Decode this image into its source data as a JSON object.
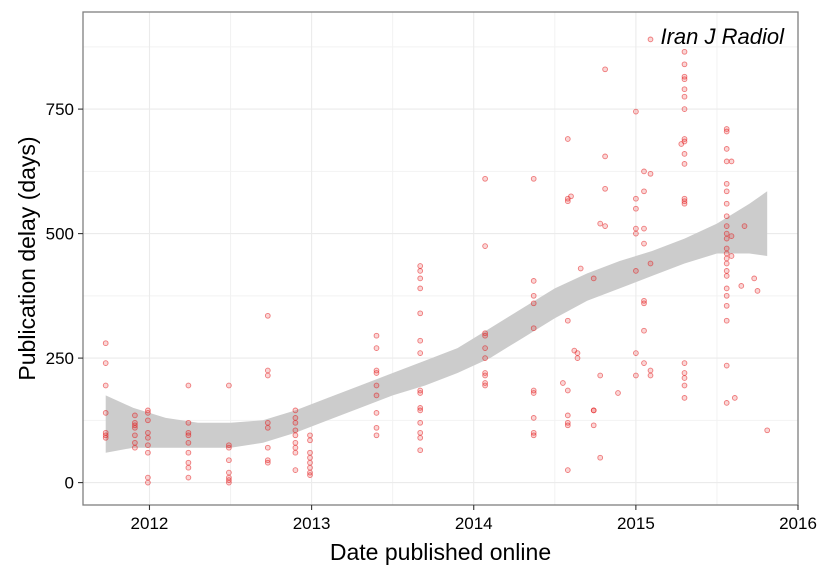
{
  "chart_data": {
    "type": "scatter",
    "annotation": "Iran J Radiol",
    "xlabel": "Date published online",
    "ylabel": "Publication delay (days)",
    "xlim": [
      2011.59,
      2016.0
    ],
    "ylim": [
      -45,
      945
    ],
    "xticks": [
      2012,
      2013,
      2014,
      2015,
      2016
    ],
    "yticks": [
      0,
      250,
      500,
      750
    ],
    "grid": true,
    "point_color": "#e41a1c",
    "smooth_band_color": "#cccccc",
    "points": [
      {
        "x": 2011.73,
        "y": 280
      },
      {
        "x": 2011.73,
        "y": 240
      },
      {
        "x": 2011.73,
        "y": 195
      },
      {
        "x": 2011.73,
        "y": 140
      },
      {
        "x": 2011.73,
        "y": 100
      },
      {
        "x": 2011.73,
        "y": 95
      },
      {
        "x": 2011.73,
        "y": 90
      },
      {
        "x": 2011.91,
        "y": 135
      },
      {
        "x": 2011.91,
        "y": 120
      },
      {
        "x": 2011.91,
        "y": 115
      },
      {
        "x": 2011.91,
        "y": 110
      },
      {
        "x": 2011.91,
        "y": 95
      },
      {
        "x": 2011.91,
        "y": 80
      },
      {
        "x": 2011.91,
        "y": 70
      },
      {
        "x": 2011.99,
        "y": 145
      },
      {
        "x": 2011.99,
        "y": 140
      },
      {
        "x": 2011.99,
        "y": 125
      },
      {
        "x": 2011.99,
        "y": 100
      },
      {
        "x": 2011.99,
        "y": 90
      },
      {
        "x": 2011.99,
        "y": 75
      },
      {
        "x": 2011.99,
        "y": 60
      },
      {
        "x": 2011.99,
        "y": 10
      },
      {
        "x": 2011.99,
        "y": 0
      },
      {
        "x": 2012.24,
        "y": 195
      },
      {
        "x": 2012.24,
        "y": 120
      },
      {
        "x": 2012.24,
        "y": 100
      },
      {
        "x": 2012.24,
        "y": 95
      },
      {
        "x": 2012.24,
        "y": 80
      },
      {
        "x": 2012.24,
        "y": 60
      },
      {
        "x": 2012.24,
        "y": 40
      },
      {
        "x": 2012.24,
        "y": 30
      },
      {
        "x": 2012.24,
        "y": 10
      },
      {
        "x": 2012.49,
        "y": 195
      },
      {
        "x": 2012.49,
        "y": 75
      },
      {
        "x": 2012.49,
        "y": 70
      },
      {
        "x": 2012.49,
        "y": 45
      },
      {
        "x": 2012.49,
        "y": 20
      },
      {
        "x": 2012.49,
        "y": 10
      },
      {
        "x": 2012.49,
        "y": 5
      },
      {
        "x": 2012.49,
        "y": 0
      },
      {
        "x": 2012.73,
        "y": 335
      },
      {
        "x": 2012.73,
        "y": 225
      },
      {
        "x": 2012.73,
        "y": 215
      },
      {
        "x": 2012.73,
        "y": 120
      },
      {
        "x": 2012.73,
        "y": 110
      },
      {
        "x": 2012.73,
        "y": 70
      },
      {
        "x": 2012.73,
        "y": 45
      },
      {
        "x": 2012.73,
        "y": 40
      },
      {
        "x": 2012.9,
        "y": 145
      },
      {
        "x": 2012.9,
        "y": 130
      },
      {
        "x": 2012.9,
        "y": 120
      },
      {
        "x": 2012.9,
        "y": 105
      },
      {
        "x": 2012.9,
        "y": 95
      },
      {
        "x": 2012.9,
        "y": 80
      },
      {
        "x": 2012.9,
        "y": 70
      },
      {
        "x": 2012.9,
        "y": 60
      },
      {
        "x": 2012.9,
        "y": 25
      },
      {
        "x": 2012.99,
        "y": 95
      },
      {
        "x": 2012.99,
        "y": 85
      },
      {
        "x": 2012.99,
        "y": 60
      },
      {
        "x": 2012.99,
        "y": 50
      },
      {
        "x": 2012.99,
        "y": 40
      },
      {
        "x": 2012.99,
        "y": 30
      },
      {
        "x": 2012.99,
        "y": 20
      },
      {
        "x": 2012.99,
        "y": 15
      },
      {
        "x": 2013.4,
        "y": 295
      },
      {
        "x": 2013.4,
        "y": 270
      },
      {
        "x": 2013.4,
        "y": 225
      },
      {
        "x": 2013.4,
        "y": 220
      },
      {
        "x": 2013.4,
        "y": 195
      },
      {
        "x": 2013.4,
        "y": 175
      },
      {
        "x": 2013.4,
        "y": 140
      },
      {
        "x": 2013.4,
        "y": 110
      },
      {
        "x": 2013.4,
        "y": 95
      },
      {
        "x": 2013.67,
        "y": 435
      },
      {
        "x": 2013.67,
        "y": 425
      },
      {
        "x": 2013.67,
        "y": 410
      },
      {
        "x": 2013.67,
        "y": 390
      },
      {
        "x": 2013.67,
        "y": 340
      },
      {
        "x": 2013.67,
        "y": 285
      },
      {
        "x": 2013.67,
        "y": 260
      },
      {
        "x": 2013.67,
        "y": 185
      },
      {
        "x": 2013.67,
        "y": 180
      },
      {
        "x": 2013.67,
        "y": 150
      },
      {
        "x": 2013.67,
        "y": 145
      },
      {
        "x": 2013.67,
        "y": 120
      },
      {
        "x": 2013.67,
        "y": 100
      },
      {
        "x": 2013.67,
        "y": 90
      },
      {
        "x": 2013.67,
        "y": 65
      },
      {
        "x": 2014.07,
        "y": 610
      },
      {
        "x": 2014.07,
        "y": 475
      },
      {
        "x": 2014.07,
        "y": 300
      },
      {
        "x": 2014.07,
        "y": 295
      },
      {
        "x": 2014.07,
        "y": 270
      },
      {
        "x": 2014.07,
        "y": 250
      },
      {
        "x": 2014.07,
        "y": 220
      },
      {
        "x": 2014.07,
        "y": 215
      },
      {
        "x": 2014.07,
        "y": 200
      },
      {
        "x": 2014.07,
        "y": 195
      },
      {
        "x": 2014.37,
        "y": 610
      },
      {
        "x": 2014.37,
        "y": 405
      },
      {
        "x": 2014.37,
        "y": 375
      },
      {
        "x": 2014.37,
        "y": 360
      },
      {
        "x": 2014.37,
        "y": 310
      },
      {
        "x": 2014.37,
        "y": 185
      },
      {
        "x": 2014.37,
        "y": 180
      },
      {
        "x": 2014.37,
        "y": 130
      },
      {
        "x": 2014.37,
        "y": 100
      },
      {
        "x": 2014.37,
        "y": 95
      },
      {
        "x": 2014.55,
        "y": 200
      },
      {
        "x": 2014.58,
        "y": 690
      },
      {
        "x": 2014.58,
        "y": 570
      },
      {
        "x": 2014.58,
        "y": 565
      },
      {
        "x": 2014.58,
        "y": 325
      },
      {
        "x": 2014.58,
        "y": 185
      },
      {
        "x": 2014.58,
        "y": 135
      },
      {
        "x": 2014.58,
        "y": 120
      },
      {
        "x": 2014.58,
        "y": 115
      },
      {
        "x": 2014.58,
        "y": 25
      },
      {
        "x": 2014.6,
        "y": 575
      },
      {
        "x": 2014.62,
        "y": 265
      },
      {
        "x": 2014.64,
        "y": 260
      },
      {
        "x": 2014.64,
        "y": 250
      },
      {
        "x": 2014.66,
        "y": 430
      },
      {
        "x": 2014.74,
        "y": 410
      },
      {
        "x": 2014.74,
        "y": 145
      },
      {
        "x": 2014.74,
        "y": 145
      },
      {
        "x": 2014.74,
        "y": 115
      },
      {
        "x": 2014.78,
        "y": 520
      },
      {
        "x": 2014.78,
        "y": 215
      },
      {
        "x": 2014.78,
        "y": 50
      },
      {
        "x": 2014.81,
        "y": 830
      },
      {
        "x": 2014.81,
        "y": 655
      },
      {
        "x": 2014.81,
        "y": 590
      },
      {
        "x": 2014.81,
        "y": 515
      },
      {
        "x": 2014.89,
        "y": 180
      },
      {
        "x": 2015.0,
        "y": 745
      },
      {
        "x": 2015.0,
        "y": 570
      },
      {
        "x": 2015.0,
        "y": 550
      },
      {
        "x": 2015.0,
        "y": 510
      },
      {
        "x": 2015.0,
        "y": 500
      },
      {
        "x": 2015.0,
        "y": 425
      },
      {
        "x": 2015.0,
        "y": 260
      },
      {
        "x": 2015.0,
        "y": 215
      },
      {
        "x": 2015.05,
        "y": 625
      },
      {
        "x": 2015.05,
        "y": 585
      },
      {
        "x": 2015.05,
        "y": 510
      },
      {
        "x": 2015.05,
        "y": 480
      },
      {
        "x": 2015.05,
        "y": 365
      },
      {
        "x": 2015.05,
        "y": 360
      },
      {
        "x": 2015.05,
        "y": 305
      },
      {
        "x": 2015.05,
        "y": 240
      },
      {
        "x": 2015.09,
        "y": 620
      },
      {
        "x": 2015.09,
        "y": 440
      },
      {
        "x": 2015.09,
        "y": 225
      },
      {
        "x": 2015.09,
        "y": 215
      },
      {
        "x": 2015.09,
        "y": 890
      },
      {
        "x": 2015.28,
        "y": 680
      },
      {
        "x": 2015.3,
        "y": 865
      },
      {
        "x": 2015.3,
        "y": 840
      },
      {
        "x": 2015.3,
        "y": 815
      },
      {
        "x": 2015.3,
        "y": 810
      },
      {
        "x": 2015.3,
        "y": 790
      },
      {
        "x": 2015.3,
        "y": 775
      },
      {
        "x": 2015.3,
        "y": 750
      },
      {
        "x": 2015.3,
        "y": 690
      },
      {
        "x": 2015.3,
        "y": 685
      },
      {
        "x": 2015.3,
        "y": 660
      },
      {
        "x": 2015.3,
        "y": 640
      },
      {
        "x": 2015.3,
        "y": 570
      },
      {
        "x": 2015.3,
        "y": 565
      },
      {
        "x": 2015.3,
        "y": 560
      },
      {
        "x": 2015.3,
        "y": 240
      },
      {
        "x": 2015.3,
        "y": 220
      },
      {
        "x": 2015.3,
        "y": 210
      },
      {
        "x": 2015.3,
        "y": 195
      },
      {
        "x": 2015.3,
        "y": 170
      },
      {
        "x": 2015.56,
        "y": 710
      },
      {
        "x": 2015.56,
        "y": 705
      },
      {
        "x": 2015.56,
        "y": 670
      },
      {
        "x": 2015.56,
        "y": 645
      },
      {
        "x": 2015.56,
        "y": 600
      },
      {
        "x": 2015.56,
        "y": 585
      },
      {
        "x": 2015.56,
        "y": 560
      },
      {
        "x": 2015.56,
        "y": 535
      },
      {
        "x": 2015.56,
        "y": 515
      },
      {
        "x": 2015.56,
        "y": 500
      },
      {
        "x": 2015.56,
        "y": 490
      },
      {
        "x": 2015.56,
        "y": 470
      },
      {
        "x": 2015.56,
        "y": 460
      },
      {
        "x": 2015.56,
        "y": 450
      },
      {
        "x": 2015.56,
        "y": 440
      },
      {
        "x": 2015.56,
        "y": 425
      },
      {
        "x": 2015.56,
        "y": 415
      },
      {
        "x": 2015.56,
        "y": 390
      },
      {
        "x": 2015.56,
        "y": 375
      },
      {
        "x": 2015.56,
        "y": 355
      },
      {
        "x": 2015.56,
        "y": 325
      },
      {
        "x": 2015.56,
        "y": 235
      },
      {
        "x": 2015.56,
        "y": 160
      },
      {
        "x": 2015.59,
        "y": 645
      },
      {
        "x": 2015.59,
        "y": 495
      },
      {
        "x": 2015.59,
        "y": 455
      },
      {
        "x": 2015.61,
        "y": 170
      },
      {
        "x": 2015.65,
        "y": 395
      },
      {
        "x": 2015.67,
        "y": 515
      },
      {
        "x": 2015.73,
        "y": 410
      },
      {
        "x": 2015.75,
        "y": 385
      },
      {
        "x": 2015.81,
        "y": 105
      }
    ],
    "smooth": [
      {
        "x": 2011.73,
        "lo": 60,
        "fit": 115,
        "hi": 175
      },
      {
        "x": 2011.9,
        "lo": 70,
        "fit": 110,
        "hi": 150
      },
      {
        "x": 2012.1,
        "lo": 70,
        "fit": 100,
        "hi": 130
      },
      {
        "x": 2012.3,
        "lo": 70,
        "fit": 95,
        "hi": 120
      },
      {
        "x": 2012.5,
        "lo": 70,
        "fit": 95,
        "hi": 120
      },
      {
        "x": 2012.7,
        "lo": 80,
        "fit": 103,
        "hi": 125
      },
      {
        "x": 2012.9,
        "lo": 100,
        "fit": 122,
        "hi": 145
      },
      {
        "x": 2013.1,
        "lo": 125,
        "fit": 147,
        "hi": 170
      },
      {
        "x": 2013.3,
        "lo": 150,
        "fit": 173,
        "hi": 195
      },
      {
        "x": 2013.5,
        "lo": 175,
        "fit": 198,
        "hi": 220
      },
      {
        "x": 2013.7,
        "lo": 195,
        "fit": 220,
        "hi": 245
      },
      {
        "x": 2013.9,
        "lo": 220,
        "fit": 245,
        "hi": 270
      },
      {
        "x": 2014.1,
        "lo": 250,
        "fit": 280,
        "hi": 310
      },
      {
        "x": 2014.3,
        "lo": 290,
        "fit": 320,
        "hi": 350
      },
      {
        "x": 2014.5,
        "lo": 330,
        "fit": 360,
        "hi": 390
      },
      {
        "x": 2014.7,
        "lo": 365,
        "fit": 392,
        "hi": 420
      },
      {
        "x": 2014.9,
        "lo": 390,
        "fit": 417,
        "hi": 445
      },
      {
        "x": 2015.1,
        "lo": 415,
        "fit": 440,
        "hi": 465
      },
      {
        "x": 2015.3,
        "lo": 440,
        "fit": 465,
        "hi": 490
      },
      {
        "x": 2015.5,
        "lo": 460,
        "fit": 490,
        "hi": 520
      },
      {
        "x": 2015.7,
        "lo": 460,
        "fit": 510,
        "hi": 560
      },
      {
        "x": 2015.81,
        "lo": 455,
        "fit": 520,
        "hi": 585
      }
    ]
  }
}
